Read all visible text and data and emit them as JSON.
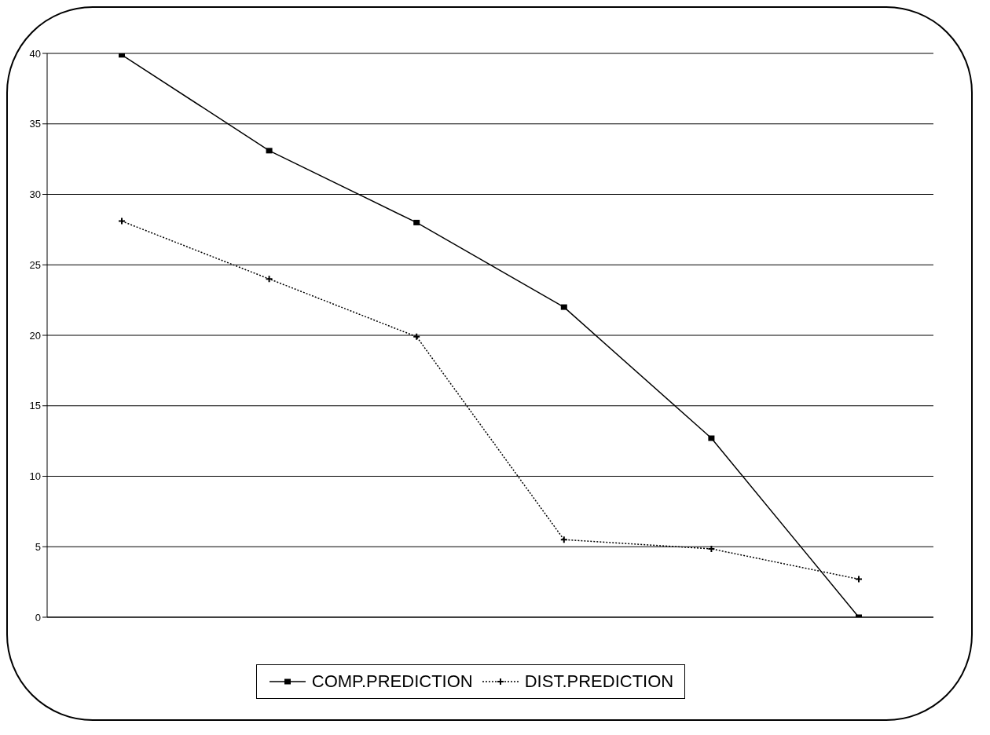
{
  "chart_data": {
    "type": "line",
    "categories": [
      null,
      null,
      null,
      null,
      null,
      null
    ],
    "series": [
      {
        "name": "COMP.PREDICTION",
        "color": "#000000",
        "values": [
          39.9,
          33.1,
          28.0,
          22.0,
          12.7,
          0
        ],
        "marker": "square",
        "line_style": "solid"
      },
      {
        "name": "DIST.PREDICTION",
        "color": "#000000",
        "values": [
          28.1,
          24.0,
          19.9,
          5.5,
          4.85,
          2.7
        ],
        "marker": "cross",
        "line_style": "dotted"
      }
    ],
    "ylim": [
      0,
      40
    ],
    "yticks": [
      0,
      5,
      10,
      15,
      20,
      25,
      30,
      35,
      40
    ],
    "grid": "y",
    "legend": "bottom",
    "tick_labels": "y"
  }
}
